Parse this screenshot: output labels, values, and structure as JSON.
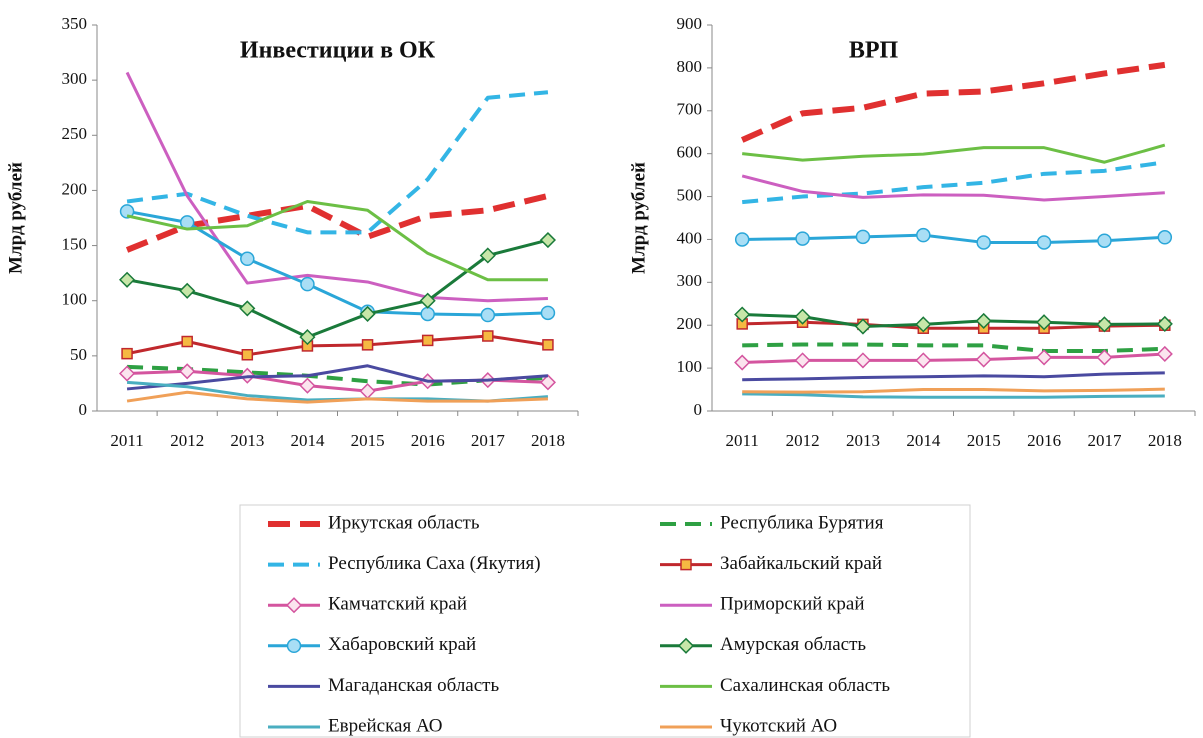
{
  "chart_data": [
    {
      "type": "line",
      "title": "Инвестиции в ОК",
      "y_label": "Млрд рублей",
      "categories": [
        "2011",
        "2012",
        "2013",
        "2014",
        "2015",
        "2016",
        "2017",
        "2018"
      ],
      "ylim": [
        0,
        350
      ],
      "yticks": [
        0,
        50,
        100,
        150,
        200,
        250,
        300,
        350
      ],
      "series": [
        {
          "name": "Иркутская область",
          "color": "#e03030",
          "linestyle": "dashed",
          "values": [
            146,
            168,
            177,
            186,
            158,
            177,
            182,
            195
          ]
        },
        {
          "name": "Республика Бурятия",
          "color": "#2ea043",
          "linestyle": "dashed",
          "values": [
            40,
            38,
            35,
            32,
            27,
            24,
            28,
            30
          ]
        },
        {
          "name": "Республика Саха (Якутия)",
          "color": "#33b5e5",
          "linestyle": "dashed",
          "values": [
            190,
            197,
            177,
            162,
            162,
            210,
            284,
            289
          ]
        },
        {
          "name": "Забайкальский край",
          "color": "#c0282d",
          "marker": "square",
          "marker_fill": "#f5b942",
          "values": [
            52,
            63,
            51,
            59,
            60,
            64,
            68,
            60
          ]
        },
        {
          "name": "Камчатский край",
          "color": "#d4559f",
          "marker": "diamond",
          "marker_fill": "#fbe4ee",
          "values": [
            34,
            36,
            32,
            23,
            18,
            27,
            28,
            26
          ]
        },
        {
          "name": "Приморский край",
          "color": "#cc5fc0",
          "values": [
            307,
            195,
            116,
            123,
            117,
            103,
            100,
            102
          ]
        },
        {
          "name": "Хабаровский край",
          "color": "#2aa6d8",
          "marker": "circle",
          "marker_fill": "#a9def5",
          "values": [
            181,
            171,
            138,
            115,
            90,
            88,
            87,
            89
          ]
        },
        {
          "name": "Амурская область",
          "color": "#1a7a3a",
          "marker": "diamond",
          "marker_fill": "#c7e6a8",
          "values": [
            119,
            109,
            93,
            67,
            88,
            100,
            141,
            155
          ]
        },
        {
          "name": "Магаданская область",
          "color": "#4a4aa0",
          "values": [
            20,
            25,
            31,
            32,
            41,
            27,
            28,
            32
          ]
        },
        {
          "name": "Сахалинская область",
          "color": "#6cbf45",
          "values": [
            177,
            165,
            168,
            190,
            182,
            143,
            119,
            119
          ]
        },
        {
          "name": "Еврейская АО",
          "color": "#4aaec0",
          "values": [
            26,
            22,
            14,
            10,
            11,
            11,
            9,
            13
          ]
        },
        {
          "name": "Чукотский АО",
          "color": "#f0a058",
          "values": [
            9,
            17,
            11,
            8,
            11,
            9,
            9,
            11
          ]
        }
      ]
    },
    {
      "type": "line",
      "title": "ВРП",
      "y_label": "Млрд рублей",
      "categories": [
        "2011",
        "2012",
        "2013",
        "2014",
        "2015",
        "2016",
        "2017",
        "2018"
      ],
      "ylim": [
        0,
        900
      ],
      "yticks": [
        0,
        100,
        200,
        300,
        400,
        500,
        600,
        700,
        800,
        900
      ],
      "series": [
        {
          "values": [
            632,
            694,
            707,
            740,
            745,
            764,
            787,
            807
          ]
        },
        {
          "values": [
            153,
            155,
            155,
            153,
            153,
            140,
            140,
            145
          ]
        },
        {
          "values": [
            487,
            500,
            507,
            522,
            532,
            553,
            560,
            580
          ]
        },
        {
          "values": [
            203,
            207,
            202,
            193,
            193,
            193,
            198,
            200
          ]
        },
        {
          "values": [
            113,
            118,
            118,
            118,
            120,
            125,
            125,
            133
          ]
        },
        {
          "values": [
            548,
            512,
            498,
            504,
            503,
            492,
            500,
            509
          ]
        },
        {
          "values": [
            400,
            402,
            406,
            410,
            393,
            393,
            397,
            405
          ]
        },
        {
          "values": [
            225,
            220,
            197,
            202,
            210,
            207,
            202,
            203
          ]
        },
        {
          "values": [
            73,
            75,
            78,
            80,
            82,
            80,
            86,
            89
          ]
        },
        {
          "values": [
            600,
            585,
            594,
            599,
            614,
            614,
            580,
            620
          ]
        },
        {
          "values": [
            40,
            38,
            33,
            32,
            32,
            32,
            34,
            35
          ]
        },
        {
          "values": [
            45,
            44,
            45,
            50,
            50,
            47,
            48,
            51
          ]
        }
      ]
    }
  ]
}
